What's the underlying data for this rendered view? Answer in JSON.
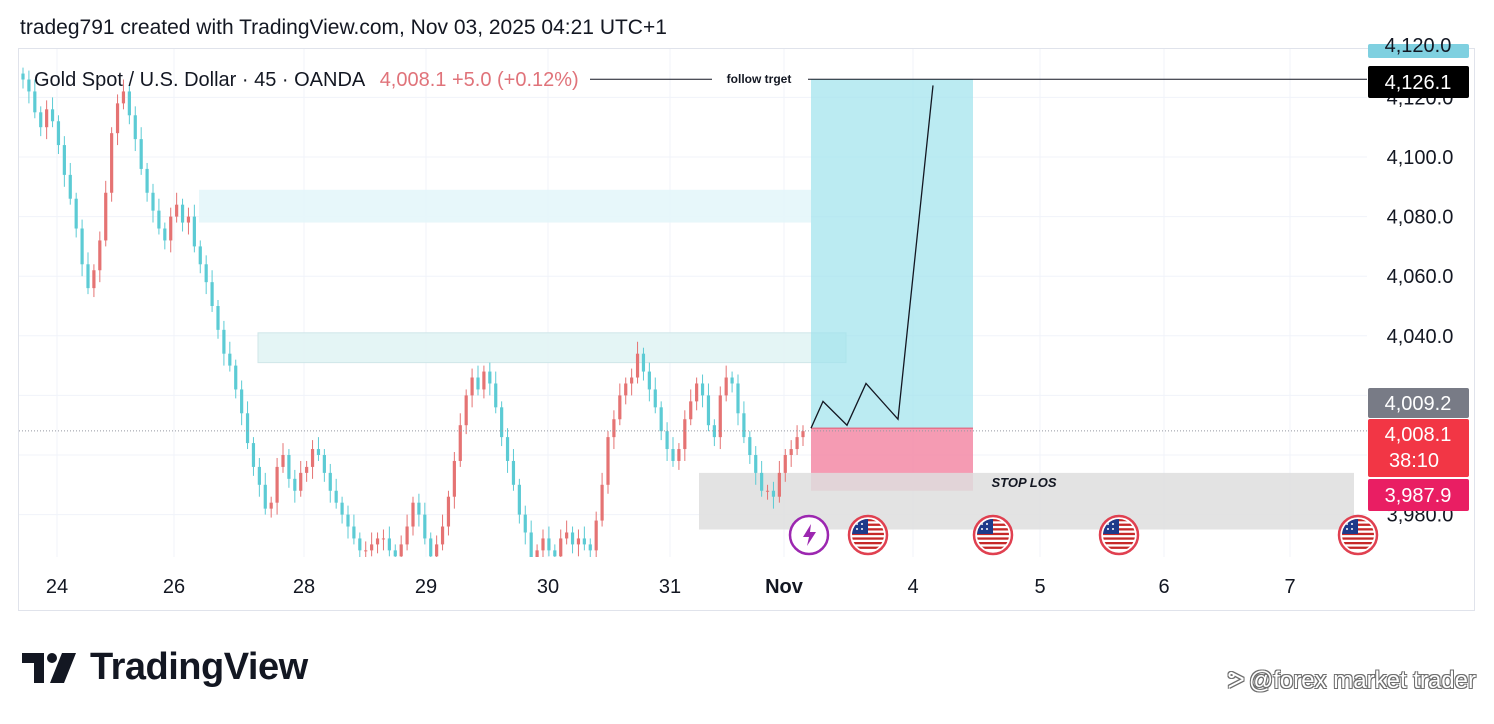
{
  "header": {
    "credit": "tradeg791 created with TradingView.com, Nov 03, 2025 04:21 UTC+1"
  },
  "symbol": {
    "name": "Gold Spot / U.S. Dollar · 45 · OANDA",
    "price_change": "4,008.1  +5.0 (+0.12%)"
  },
  "brand": {
    "logo_text": "TradingView"
  },
  "watermark": {
    "text": "@forex market trader"
  },
  "colors": {
    "up": "#e57373",
    "down": "#5ccbd4",
    "target_zone": "#9ee3ec",
    "stop_zone": "#f38aa6",
    "zone_light": "#e4f6fa",
    "gray_zone": "#dedede",
    "last_price": "#f23645",
    "stop_label": "#e91e63",
    "gray_label": "#787b86"
  },
  "chart_data": {
    "type": "candlestick",
    "x_ticks": [
      "24",
      "26",
      "28",
      "29",
      "30",
      "31",
      "Nov",
      "4",
      "5",
      "6",
      "7"
    ],
    "y_ticks": [
      "4,120.0",
      "4,100.0",
      "4,080.0",
      "4,060.0",
      "4,040.0",
      "3,980.0"
    ],
    "ylim": [
      3967,
      4135
    ],
    "last_price": 4008.1,
    "countdown": "38:10",
    "series": [
      {
        "name": "close",
        "values": [
          4126,
          4122,
          4115,
          4110,
          4116,
          4112,
          4104,
          4094,
          4086,
          4076,
          4064,
          4056,
          4062,
          4072,
          4088,
          4108,
          4118,
          4122,
          4114,
          4106,
          4096,
          4088,
          4082,
          4076,
          4072,
          4080,
          4084,
          4078,
          4080,
          4070,
          4064,
          4058,
          4050,
          4042,
          4034,
          4030,
          4022,
          4014,
          4004,
          3996,
          3990,
          3982,
          3984,
          3996,
          4000,
          3992,
          3988,
          3994,
          3996,
          4002,
          4000,
          3994,
          3988,
          3984,
          3980,
          3976,
          3972,
          3968,
          3968,
          3970,
          3972,
          3972,
          3968,
          3966,
          3970,
          3976,
          3984,
          3980,
          3972,
          3966,
          3970,
          3976,
          3986,
          3998,
          4010,
          4020,
          4026,
          4022,
          4028,
          4024,
          4016,
          4006,
          3998,
          3990,
          3980,
          3974,
          3962,
          3968,
          3972,
          3968,
          3966,
          3972,
          3974,
          3970,
          3972,
          3970,
          3968,
          3978,
          3990,
          4006,
          4012,
          4020,
          4024,
          4026,
          4034,
          4028,
          4022,
          4016,
          4008,
          4002,
          3998,
          4002,
          4012,
          4018,
          4024,
          4020,
          4010,
          4006,
          4020,
          4026,
          4024,
          4014,
          4006,
          4000,
          3994,
          3988,
          3988,
          3986,
          3994,
          4000,
          4002,
          4006,
          4008
        ]
      }
    ],
    "hlines": [
      {
        "name": "follow trget",
        "label": "follow trget",
        "value": 4126.1
      }
    ],
    "zones": [
      {
        "name": "upper-supply-zone",
        "top": 4089,
        "bottom": 4078
      },
      {
        "name": "lower-supply-zone",
        "top": 4041,
        "bottom": 4031
      },
      {
        "name": "target-zone",
        "top": 4126.1,
        "bottom": 4009
      },
      {
        "name": "stop-zone",
        "top": 4009,
        "bottom": 3988
      },
      {
        "name": "stop-loss-zone",
        "label": "STOP LOS",
        "top": 3994,
        "bottom": 3975
      }
    ],
    "projection_path": [
      4009,
      4018,
      4010,
      4024,
      4012,
      4124
    ],
    "price_labels": [
      {
        "name": "peek-price-tag",
        "value": "4,120.0"
      },
      {
        "name": "target-price-tag",
        "value": "4,126.1"
      },
      {
        "name": "gray-price-tag",
        "value": "4,009.2"
      },
      {
        "name": "last-price-tag",
        "value": "4,008.1"
      },
      {
        "name": "stop-price-tag",
        "value": "3,987.9"
      }
    ],
    "events": [
      "lightning-event-icon",
      "us-flag-icon",
      "us-flag-icon",
      "us-flag-icon",
      "us-flag-icon"
    ]
  }
}
